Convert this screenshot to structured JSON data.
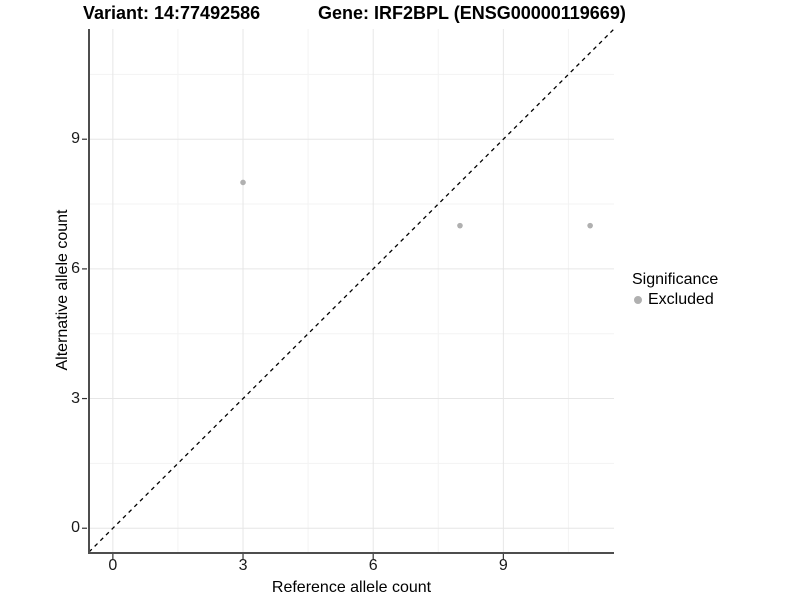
{
  "chart_data": {
    "type": "scatter",
    "title_left": "Variant: 14:77492586",
    "title_right": "Gene: IRF2BPL (ENSG00000119669)",
    "xlabel": "Reference allele count",
    "ylabel": "Alternative allele count",
    "xlim": [
      -0.55,
      11.55
    ],
    "ylim": [
      -0.55,
      11.55
    ],
    "x_ticks": [
      0,
      3,
      6,
      9
    ],
    "y_ticks": [
      0,
      3,
      6,
      9
    ],
    "x_minor_ticks": [
      1.5,
      4.5,
      7.5,
      10.5
    ],
    "y_minor_ticks": [
      1.5,
      4.5,
      7.5,
      10.5
    ],
    "grid": "major-and-minor",
    "series": [
      {
        "name": "Excluded",
        "color": "#b0b0b0",
        "points": [
          {
            "x": 3,
            "y": 8
          },
          {
            "x": 8,
            "y": 7
          },
          {
            "x": 11,
            "y": 7
          }
        ]
      }
    ],
    "reference_line": {
      "type": "identity y=x",
      "style": "dashed",
      "color": "#000000"
    },
    "legend": {
      "title": "Significance",
      "position": "right",
      "entries": [
        {
          "label": "Excluded",
          "color": "#b0b0b0"
        }
      ]
    },
    "colors": {
      "background": "#ffffff",
      "grid_major": "#e6e6e6",
      "grid_minor": "#f3f3f3",
      "axis_line": "#4d4d4d",
      "tick_mark": "#333333",
      "point": "#b0b0b0"
    }
  }
}
